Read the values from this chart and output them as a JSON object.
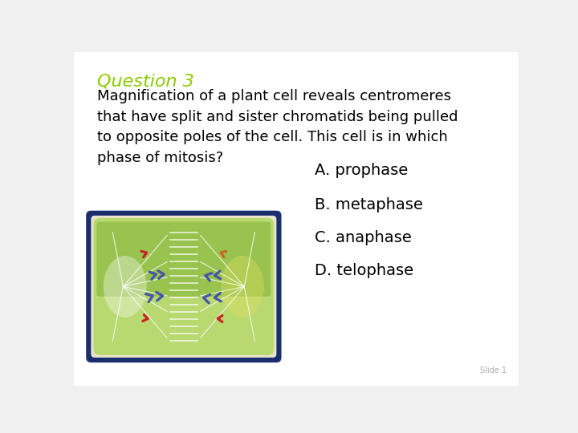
{
  "bg_color": "#f0f0f0",
  "card_bg": "#ffffff",
  "title": "Question 3",
  "title_color": "#88cc00",
  "question_text": "Magnification of a plant cell reveals centromeres\nthat have split and sister chromatids being pulled\nto opposite poles of the cell. This cell is in which\nphase of mitosis?",
  "question_color": "#000000",
  "answers": [
    "A. prophase",
    "B. metaphase",
    "C. anaphase",
    "D. telophase"
  ],
  "answer_color": "#000000",
  "title_fontsize": 16,
  "question_fontsize": 13,
  "answer_fontsize": 14,
  "cell_outer_bg": "#1a2e6e",
  "cell_cream": "#e8e4cc",
  "cell_green_light": "#b8d870",
  "cell_green_dark": "#7ab030",
  "spindle_color": "#ffffff",
  "blue_chrom": "#4455aa",
  "red_chrom": "#cc2222",
  "orange_chrom": "#cc6622",
  "footnote": "Slide 1",
  "footnote_color": "#aaaaaa"
}
